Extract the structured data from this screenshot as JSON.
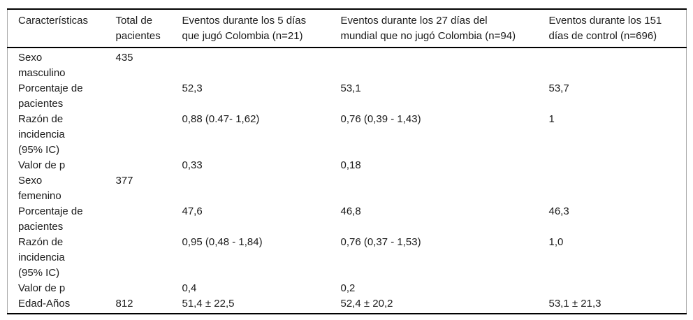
{
  "colors": {
    "background": "#ffffff",
    "text": "#1a1a1a",
    "strong_rule": "#000000",
    "light_rule": "#a8a8a8"
  },
  "table": {
    "columns": [
      "Características",
      "Total de\npacientes",
      "Eventos durante los 5 días\nque jugó Colombia (n=21)",
      "Eventos durante los 27 días del\nmundial que no jugó Colombia (n=94)",
      "Eventos durante los 151\ndías de control (n=696)"
    ],
    "rows": [
      {
        "cells": [
          "Sexo\nmasculino",
          "435",
          "",
          "",
          ""
        ]
      },
      {
        "cells": [
          "Porcentaje de\npacientes",
          "",
          "52,3",
          "53,1",
          "53,7"
        ]
      },
      {
        "cells": [
          "Razón de\nincidencia\n(95% IC)",
          "",
          "0,88 (0.47- 1,62)",
          "0,76 (0,39 - 1,43)",
          "1"
        ]
      },
      {
        "cells": [
          "Valor de p",
          "",
          "0,33",
          "0,18",
          ""
        ]
      },
      {
        "cells": [
          "Sexo\nfemenino",
          "377",
          "",
          "",
          ""
        ]
      },
      {
        "cells": [
          "Porcentaje de\npacientes",
          "",
          "47,6",
          "46,8",
          "46,3"
        ]
      },
      {
        "cells": [
          "Razón de\nincidencia\n(95% IC)",
          "",
          "0,95 (0,48 - 1,84)",
          "0,76 (0,37 - 1,53)",
          "1,0"
        ]
      },
      {
        "cells": [
          "Valor de p",
          "",
          "0,4",
          "0,2",
          ""
        ]
      },
      {
        "cells": [
          "Edad-Años",
          "812",
          "51,4 ± 22,5",
          "52,4 ± 20,2",
          "53,1 ± 21,3"
        ]
      }
    ]
  }
}
